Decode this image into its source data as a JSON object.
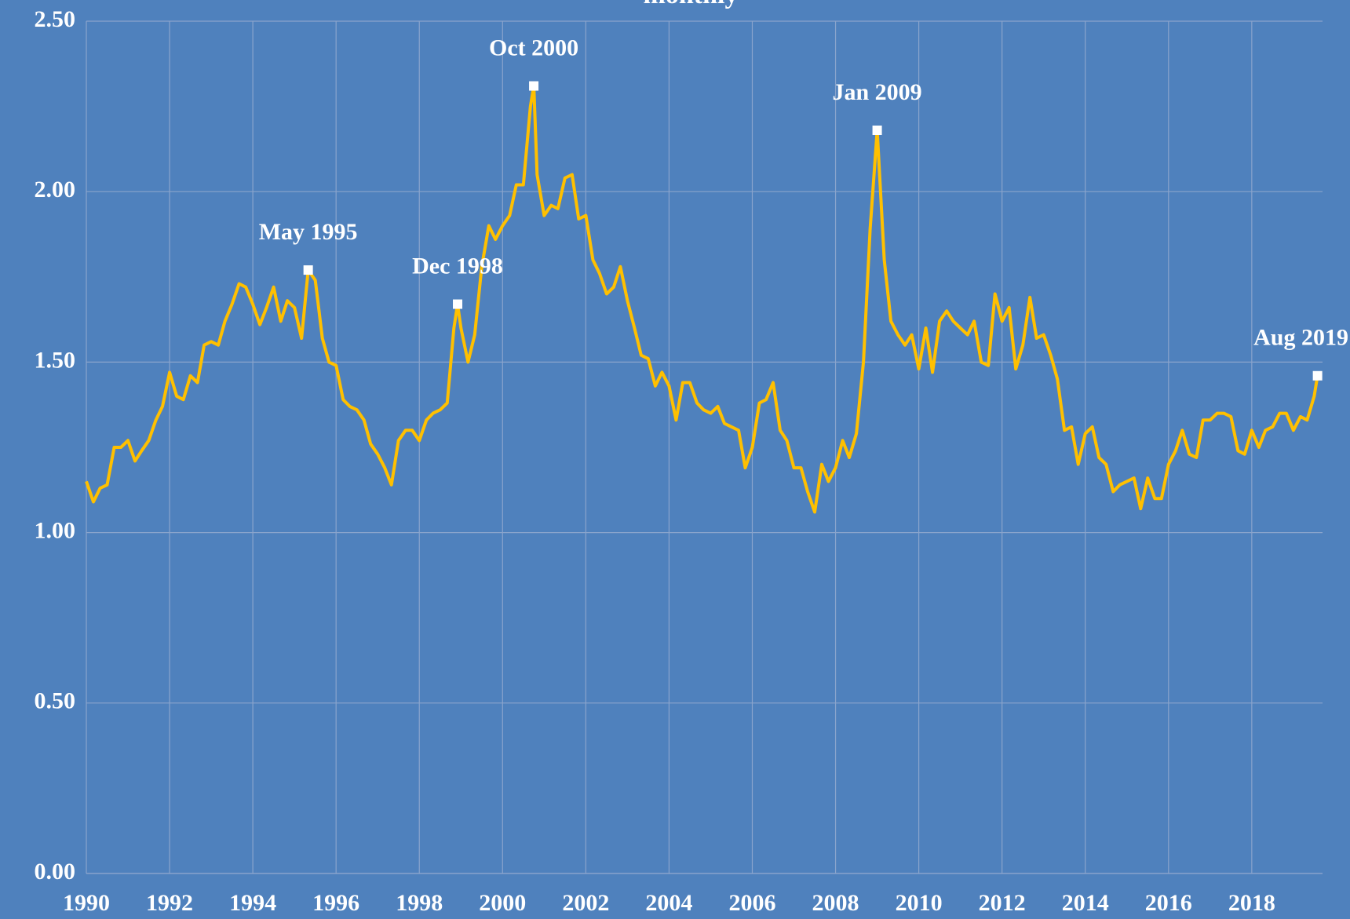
{
  "chart_data": {
    "type": "line",
    "title": "monthly",
    "xlim": [
      1990,
      2019.7
    ],
    "xticks": [
      1990,
      1992,
      1994,
      1996,
      1998,
      2000,
      2002,
      2004,
      2006,
      2008,
      2010,
      2012,
      2014,
      2016,
      2018
    ],
    "ylim": [
      0,
      2.5
    ],
    "yticks": [
      {
        "value": 0,
        "label": "0.00"
      },
      {
        "value": 0.5,
        "label": "0.50"
      },
      {
        "value": 1,
        "label": "1.00"
      },
      {
        "value": 1.5,
        "label": "1.50"
      },
      {
        "value": 2,
        "label": "2.00"
      },
      {
        "value": 2.5,
        "label": "2.50"
      }
    ],
    "grid": true,
    "color": "#ffc000",
    "x": [
      1990.0,
      1990.17,
      1990.33,
      1990.5,
      1990.67,
      1990.83,
      1991.0,
      1991.17,
      1991.33,
      1991.5,
      1991.67,
      1991.83,
      1992.0,
      1992.17,
      1992.33,
      1992.5,
      1992.67,
      1992.83,
      1993.0,
      1993.17,
      1993.33,
      1993.5,
      1993.67,
      1993.83,
      1994.0,
      1994.17,
      1994.33,
      1994.5,
      1994.67,
      1994.83,
      1995.0,
      1995.17,
      1995.33,
      1995.5,
      1995.67,
      1995.83,
      1996.0,
      1996.17,
      1996.33,
      1996.5,
      1996.67,
      1996.83,
      1997.0,
      1997.17,
      1997.33,
      1997.5,
      1997.67,
      1997.83,
      1998.0,
      1998.17,
      1998.33,
      1998.5,
      1998.67,
      1998.83,
      1998.92,
      1999.0,
      1999.17,
      1999.33,
      1999.5,
      1999.67,
      1999.83,
      2000.0,
      2000.17,
      2000.33,
      2000.5,
      2000.67,
      2000.75,
      2000.83,
      2001.0,
      2001.17,
      2001.33,
      2001.5,
      2001.67,
      2001.83,
      2002.0,
      2002.17,
      2002.33,
      2002.5,
      2002.67,
      2002.83,
      2003.0,
      2003.17,
      2003.33,
      2003.5,
      2003.67,
      2003.83,
      2004.0,
      2004.17,
      2004.33,
      2004.5,
      2004.67,
      2004.83,
      2005.0,
      2005.17,
      2005.33,
      2005.5,
      2005.67,
      2005.83,
      2006.0,
      2006.17,
      2006.33,
      2006.5,
      2006.67,
      2006.83,
      2007.0,
      2007.17,
      2007.33,
      2007.5,
      2007.67,
      2007.83,
      2008.0,
      2008.17,
      2008.33,
      2008.5,
      2008.67,
      2008.83,
      2009.0,
      2009.17,
      2009.33,
      2009.5,
      2009.67,
      2009.83,
      2010.0,
      2010.17,
      2010.33,
      2010.5,
      2010.67,
      2010.83,
      2011.0,
      2011.17,
      2011.33,
      2011.5,
      2011.67,
      2011.83,
      2012.0,
      2012.17,
      2012.33,
      2012.5,
      2012.67,
      2012.83,
      2013.0,
      2013.17,
      2013.33,
      2013.5,
      2013.67,
      2013.83,
      2014.0,
      2014.17,
      2014.33,
      2014.5,
      2014.67,
      2014.83,
      2015.0,
      2015.17,
      2015.33,
      2015.5,
      2015.67,
      2015.83,
      2016.0,
      2016.17,
      2016.33,
      2016.5,
      2016.67,
      2016.83,
      2017.0,
      2017.17,
      2017.33,
      2017.5,
      2017.67,
      2017.83,
      2018.0,
      2018.17,
      2018.33,
      2018.5,
      2018.67,
      2018.83,
      2019.0,
      2019.17,
      2019.33,
      2019.5,
      2019.58
    ],
    "values": [
      1.15,
      1.09,
      1.13,
      1.14,
      1.25,
      1.25,
      1.27,
      1.21,
      1.24,
      1.27,
      1.33,
      1.37,
      1.47,
      1.4,
      1.39,
      1.46,
      1.44,
      1.55,
      1.56,
      1.55,
      1.62,
      1.67,
      1.73,
      1.72,
      1.67,
      1.61,
      1.66,
      1.72,
      1.62,
      1.68,
      1.66,
      1.57,
      1.77,
      1.74,
      1.57,
      1.5,
      1.49,
      1.39,
      1.37,
      1.36,
      1.33,
      1.26,
      1.23,
      1.19,
      1.14,
      1.27,
      1.3,
      1.3,
      1.27,
      1.33,
      1.35,
      1.36,
      1.38,
      1.6,
      1.67,
      1.6,
      1.5,
      1.58,
      1.78,
      1.9,
      1.86,
      1.9,
      1.93,
      2.02,
      2.02,
      2.25,
      2.31,
      2.05,
      1.93,
      1.96,
      1.95,
      2.04,
      2.05,
      1.92,
      1.93,
      1.8,
      1.76,
      1.7,
      1.72,
      1.78,
      1.68,
      1.6,
      1.52,
      1.51,
      1.43,
      1.47,
      1.43,
      1.33,
      1.44,
      1.44,
      1.38,
      1.36,
      1.35,
      1.37,
      1.32,
      1.31,
      1.3,
      1.19,
      1.25,
      1.38,
      1.39,
      1.44,
      1.3,
      1.27,
      1.19,
      1.19,
      1.12,
      1.06,
      1.2,
      1.15,
      1.19,
      1.27,
      1.22,
      1.29,
      1.5,
      1.89,
      2.18,
      1.8,
      1.62,
      1.58,
      1.55,
      1.58,
      1.48,
      1.6,
      1.47,
      1.62,
      1.65,
      1.62,
      1.6,
      1.58,
      1.62,
      1.5,
      1.49,
      1.7,
      1.62,
      1.66,
      1.48,
      1.55,
      1.69,
      1.57,
      1.58,
      1.52,
      1.45,
      1.3,
      1.31,
      1.2,
      1.29,
      1.31,
      1.22,
      1.2,
      1.12,
      1.14,
      1.15,
      1.16,
      1.07,
      1.16,
      1.1,
      1.1,
      1.2,
      1.24,
      1.3,
      1.23,
      1.22,
      1.33,
      1.33,
      1.35,
      1.35,
      1.34,
      1.24,
      1.23,
      1.3,
      1.25,
      1.3,
      1.31,
      1.35,
      1.35,
      1.3,
      1.34,
      1.33,
      1.4,
      1.46
    ],
    "annotations": [
      {
        "label": "May 1995",
        "x": 1995.33,
        "y": 1.77
      },
      {
        "label": "Dec 1998",
        "x": 1998.92,
        "y": 1.67
      },
      {
        "label": "Oct 2000",
        "x": 2000.75,
        "y": 2.31
      },
      {
        "label": "Jan 2009",
        "x": 2009.0,
        "y": 2.18
      },
      {
        "label": "Aug 2019",
        "x": 2019.58,
        "y": 1.46
      }
    ],
    "marker_color": "#ffffff"
  }
}
